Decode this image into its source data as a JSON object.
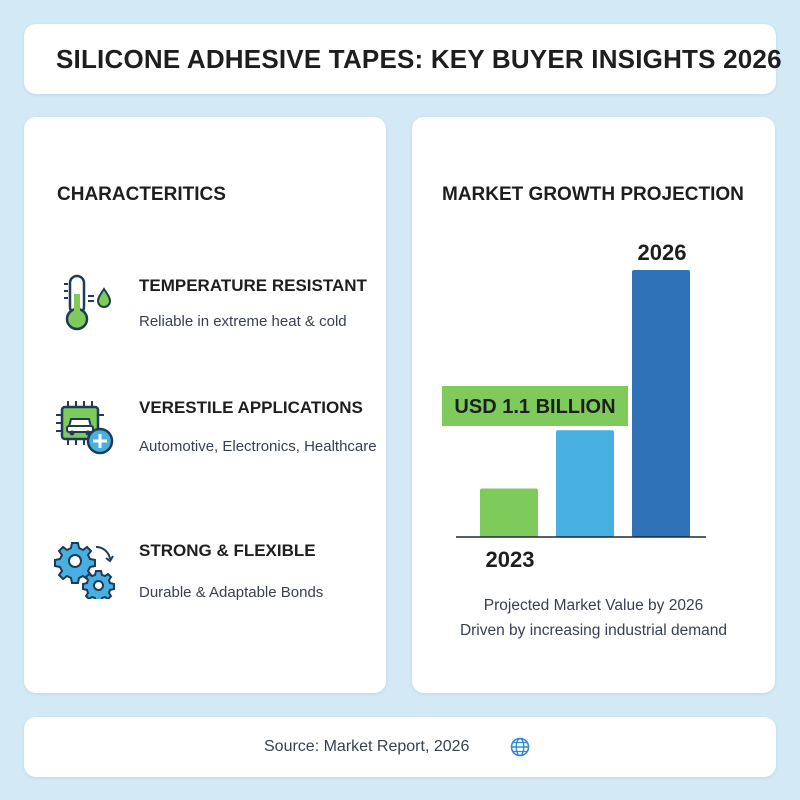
{
  "header": {
    "title": "SILICONE ADHESIVE TAPES: KEY BUYER INSIGHTS 2026"
  },
  "characteristics": {
    "heading": "CHARACTERITICS",
    "items": [
      {
        "icon": "thermometer-icon",
        "title": "TEMPERATURE RESISTANT",
        "description": "Reliable in extreme heat & cold"
      },
      {
        "icon": "circuit-car-plus-icon",
        "title": "VERESTILE APPLICATIONS",
        "description": "Automotive, Electronics, Healthcare"
      },
      {
        "icon": "gears-icon",
        "title": "STRONG & FLEXIBLE",
        "description": "Durable & Adaptable Bonds"
      }
    ]
  },
  "market": {
    "heading": "MARKET GROWTH PROJECTION",
    "caption_line1": "Projected Market Value by 2026",
    "caption_line2": "Driven by increasing industrial demand"
  },
  "chart_data": {
    "type": "bar",
    "title": "MARKET GROWTH PROJECTION",
    "categories": [
      "2023",
      "",
      "2026"
    ],
    "values": [
      0.2,
      0.44,
      1.1
    ],
    "bar_colors": [
      "#7ecb5c",
      "#47b0e0",
      "#2f72b8"
    ],
    "tick_labels": {
      "start": "2023",
      "end": "2026"
    },
    "annotation": "USD 1.1 BILLION",
    "annotation_color": "#7ecb5c",
    "ylim": [
      0,
      1.1
    ],
    "grid": false,
    "legend": "none"
  },
  "footer": {
    "source": "Source: Market Report, 2026",
    "icon": "globe-icon"
  },
  "colors": {
    "background": "#d3e9f5",
    "green": "#7ecb5c",
    "blue": "#2f72b8",
    "light_blue": "#47b0e0"
  }
}
